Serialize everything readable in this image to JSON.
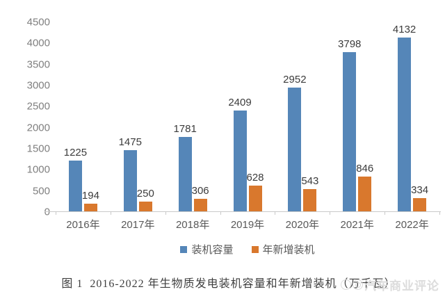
{
  "chart_data": {
    "type": "bar",
    "categories": [
      "2016年",
      "2017年",
      "2018年",
      "2019年",
      "2020年",
      "2021年",
      "2022年"
    ],
    "series": [
      {
        "name": "装机容量",
        "color": "#5586b8",
        "values": [
          1225,
          1475,
          1781,
          2409,
          2952,
          3798,
          4132
        ]
      },
      {
        "name": "年新增装机",
        "color": "#d9782d",
        "values": [
          194,
          250,
          306,
          628,
          543,
          846,
          334
        ]
      }
    ],
    "y_ticks": [
      0,
      500,
      1000,
      1500,
      2000,
      2500,
      3000,
      3500,
      4000,
      4500
    ],
    "ylim": [
      0,
      4500
    ],
    "grid": false,
    "data_labels": true,
    "legend_position": "bottom",
    "title": "图 1  2016-2022 年生物质发电装机容量和年新增装机（万千瓦）",
    "xlabel": "",
    "ylabel": ""
  },
  "caption": "图 1  2016-2022 年生物质发电装机容量和年新增装机（万千瓦）",
  "watermark": {
    "text": "汽车商业评论"
  },
  "colors": {
    "bar_blue": "#5586b8",
    "bar_orange": "#d9782d",
    "axis_line": "#c9c9c9",
    "tick_label": "#7f7f7f",
    "value_label": "#3b3b3b"
  }
}
